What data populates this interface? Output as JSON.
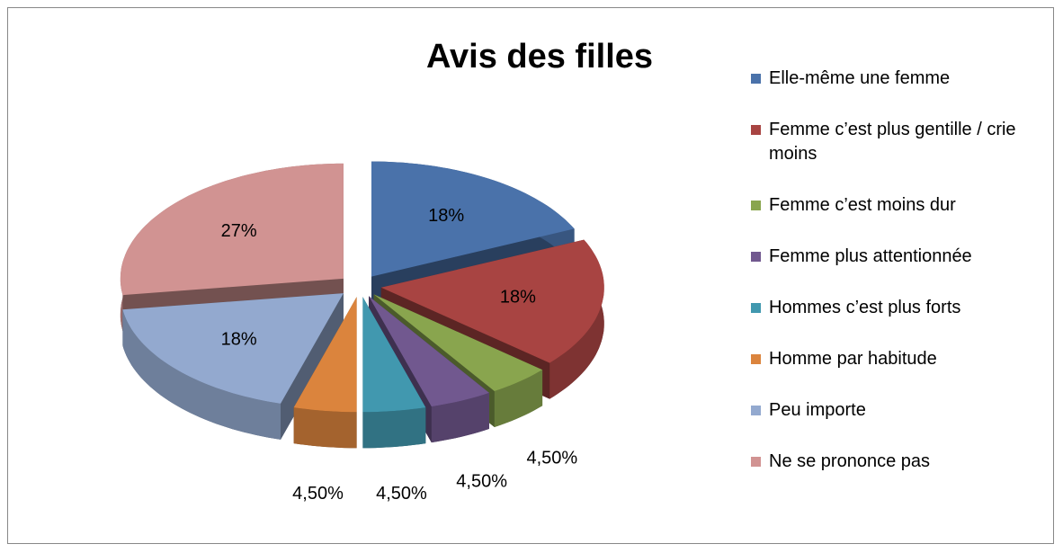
{
  "chart_data": {
    "type": "pie3d",
    "title": "Avis des filles",
    "categories": [
      "Elle-même une femme",
      "Femme c’est plus gentille / crie moins",
      "Femme c’est moins dur",
      "Femme plus attentionnée",
      "Hommes c’est plus forts",
      "Homme par habitude",
      "Peu importe",
      "Ne se prononce pas"
    ],
    "values": [
      18,
      18,
      4.5,
      4.5,
      4.5,
      4.5,
      18,
      27
    ],
    "value_labels": [
      "18%",
      "18%",
      "4,50%",
      "4,50%",
      "4,50%",
      "4,50%",
      "18%",
      "27%"
    ],
    "colors": [
      "#4a72aa",
      "#a84442",
      "#89a54e",
      "#71588f",
      "#4198af",
      "#db843d",
      "#93a9cf",
      "#d19392"
    ],
    "legend": "right"
  }
}
